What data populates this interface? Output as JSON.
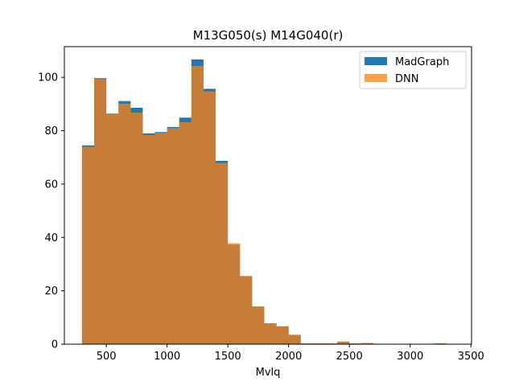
{
  "chart_data": {
    "type": "bar",
    "title": "M13G050(s) M14G040(r)",
    "xlabel": "Mvlq",
    "ylabel": "",
    "xlim": [
      155,
      3505
    ],
    "ylim": [
      0,
      111.5
    ],
    "xticks": [
      500,
      1000,
      1500,
      2000,
      2500,
      3000,
      3500
    ],
    "yticks": [
      0,
      20,
      40,
      60,
      80,
      100
    ],
    "grid": false,
    "legend_position": "top-right",
    "bin_edges": [
      300,
      400,
      500,
      600,
      700,
      800,
      900,
      1000,
      1100,
      1200,
      1300,
      1400,
      1500,
      1600,
      1700,
      1800,
      1900,
      2000,
      2100,
      2200,
      2300,
      2400,
      2500,
      2600,
      2700,
      2800,
      2900,
      3000,
      3100,
      3200,
      3300,
      3400
    ],
    "series": [
      {
        "name": "MadGraph",
        "color": "#1f77b4",
        "alpha": 1.0,
        "values": [
          74.5,
          99.7,
          86.4,
          91.1,
          88.6,
          79.0,
          79.5,
          81.4,
          84.9,
          106.7,
          95.7,
          68.7,
          37.3,
          25.5,
          14.1,
          7.8,
          6.7,
          3.5,
          0.3,
          0.3,
          0.3,
          0.9,
          0.3,
          0.4,
          0,
          0,
          0,
          0,
          0,
          0.3,
          0
        ]
      },
      {
        "name": "DNN",
        "color": "#ff7f0e",
        "alpha": 0.75,
        "values": [
          74.0,
          99.4,
          86.4,
          90.1,
          86.8,
          78.4,
          79.2,
          81.0,
          83.2,
          104.3,
          94.8,
          67.9,
          37.8,
          25.5,
          14.1,
          7.8,
          6.7,
          3.5,
          0.3,
          0.3,
          0.3,
          1.0,
          0.3,
          0.4,
          0,
          0,
          0,
          0,
          0,
          0.3,
          0
        ]
      }
    ]
  }
}
